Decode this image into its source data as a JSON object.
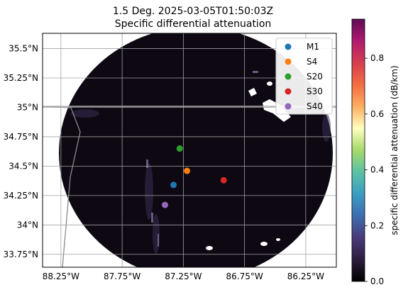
{
  "title": {
    "line1": "1.5 Deg. 2025-03-05T01:50:03Z",
    "line2": "Specific differential attenuation"
  },
  "map": {
    "x_ticks": [
      {
        "label": "88.25°W",
        "lon": -88.25
      },
      {
        "label": "87.75°W",
        "lon": -87.75
      },
      {
        "label": "87.25°W",
        "lon": -87.25
      },
      {
        "label": "86.75°W",
        "lon": -86.75
      },
      {
        "label": "86.25°W",
        "lon": -86.25
      }
    ],
    "y_ticks": [
      {
        "label": "35.5°N",
        "lat": 35.5
      },
      {
        "label": "35.25°N",
        "lat": 35.25
      },
      {
        "label": "35°N",
        "lat": 35.0
      },
      {
        "label": "34.75°N",
        "lat": 34.75
      },
      {
        "label": "34.5°N",
        "lat": 34.5
      },
      {
        "label": "34.25°N",
        "lat": 34.25
      },
      {
        "label": "34°N",
        "lat": 34.0
      },
      {
        "label": "33.75°N",
        "lat": 33.75
      }
    ],
    "extent": {
      "lon_min": -88.4,
      "lon_max": -86.0,
      "lat_min": 33.64,
      "lat_max": 35.63
    },
    "radar_background": "#0d0812",
    "gridlines": true,
    "stations": [
      {
        "name": "M1",
        "lon": -87.33,
        "lat": 34.34,
        "color": "#1f77b4"
      },
      {
        "name": "S4",
        "lon": -87.22,
        "lat": 34.46,
        "color": "#ff7f0e"
      },
      {
        "name": "S20",
        "lon": -87.28,
        "lat": 34.65,
        "color": "#2ca02c"
      },
      {
        "name": "S30",
        "lon": -86.92,
        "lat": 34.38,
        "color": "#d62728"
      },
      {
        "name": "S40",
        "lon": -87.4,
        "lat": 34.17,
        "color": "#9467bd"
      }
    ],
    "legend_position": "top-right"
  },
  "colorbar": {
    "label": "specific differential attenuation (dB/km)",
    "range": [
      0.0,
      0.94
    ],
    "ticks": [
      {
        "label": "0.0",
        "value": 0.0
      },
      {
        "label": "0.2",
        "value": 0.2
      },
      {
        "label": "0.4",
        "value": 0.4
      },
      {
        "label": "0.6",
        "value": 0.6
      },
      {
        "label": "0.8",
        "value": 0.8
      }
    ],
    "colors": [
      "#000000",
      "#2c1e3d",
      "#4a3a7a",
      "#3d6db0",
      "#3a9ec2",
      "#5cc1a5",
      "#a6d96a",
      "#ffffbf",
      "#fdae61",
      "#f46d43",
      "#d53e4f",
      "#b01a6e",
      "#5e0a55"
    ]
  }
}
